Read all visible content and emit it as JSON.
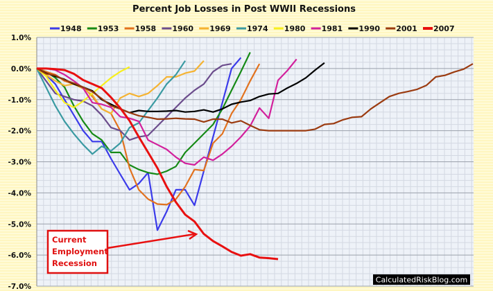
{
  "chart_data": {
    "type": "line",
    "title": "Percent Job Losses in Post WWII Recessions",
    "xlabel": "",
    "ylabel": "",
    "ylim": [
      -7.0,
      1.0
    ],
    "yticks": [
      "1.0%",
      "0.0%",
      "-1.0%",
      "-2.0%",
      "-3.0%",
      "-4.0%",
      "-5.0%",
      "-6.0%",
      "-7.0%"
    ],
    "ytick_values": [
      1,
      0,
      -1,
      -2,
      -3,
      -4,
      -5,
      -6,
      -7
    ],
    "xlim": [
      0,
      47
    ],
    "x_unit": "months after employment peak",
    "grid": true,
    "legend_position": "top",
    "series": [
      {
        "name": "1948",
        "color": "#3b3bea",
        "values": [
          0,
          -0.2,
          -0.5,
          -1.0,
          -1.5,
          -2.0,
          -2.35,
          -2.35,
          -2.9,
          -3.4,
          -3.9,
          -3.7,
          -3.35,
          -5.2,
          -4.6,
          -3.9,
          -3.9,
          -4.4,
          -3.3,
          -2.2,
          -1.1,
          0.0,
          0.35
        ]
      },
      {
        "name": "1953",
        "color": "#168a16",
        "values": [
          0,
          -0.1,
          -0.3,
          -0.6,
          -1.2,
          -1.7,
          -2.1,
          -2.3,
          -2.7,
          -2.7,
          -3.1,
          -3.25,
          -3.35,
          -3.4,
          -3.3,
          -3.15,
          -2.7,
          -2.4,
          -2.1,
          -1.8,
          -1.3,
          -0.7,
          -0.1,
          0.52
        ]
      },
      {
        "name": "1958",
        "color": "#e2721e",
        "values": [
          0,
          -0.1,
          -0.2,
          -0.4,
          -0.5,
          -0.6,
          -0.9,
          -1.3,
          -1.45,
          -2.0,
          -3.2,
          -3.9,
          -4.2,
          -4.36,
          -4.38,
          -4.2,
          -3.8,
          -3.25,
          -3.28,
          -2.4,
          -2.1,
          -1.45,
          -1.0,
          -0.4,
          0.15
        ]
      },
      {
        "name": "1960",
        "color": "#6b4c8c",
        "values": [
          0,
          -0.4,
          -0.8,
          -0.9,
          -1.0,
          -1.05,
          -1.2,
          -1.5,
          -1.9,
          -2.0,
          -2.3,
          -2.2,
          -2.15,
          -1.85,
          -1.55,
          -1.25,
          -0.95,
          -0.7,
          -0.5,
          -0.1,
          0.1,
          0.15
        ]
      },
      {
        "name": "1969",
        "color": "#f5b332",
        "values": [
          0,
          -0.2,
          -0.4,
          -0.55,
          -0.5,
          -0.65,
          -0.85,
          -1.3,
          -1.45,
          -0.95,
          -0.8,
          -0.9,
          -0.8,
          -0.55,
          -0.27,
          -0.27,
          -0.15,
          -0.08,
          0.25
        ]
      },
      {
        "name": "1974",
        "color": "#3a9aa2",
        "values": [
          0,
          -0.6,
          -1.2,
          -1.7,
          -2.1,
          -2.45,
          -2.75,
          -2.5,
          -2.65,
          -2.4,
          -1.9,
          -1.75,
          -1.35,
          -0.95,
          -0.5,
          -0.2,
          0.25
        ]
      },
      {
        "name": "1980",
        "color": "#f7ef1e",
        "values": [
          0,
          -0.25,
          -0.7,
          -1.1,
          -1.25,
          -1.05,
          -0.8,
          -0.55,
          -0.3,
          -0.1,
          0.05
        ]
      },
      {
        "name": "1981",
        "color": "#d2209c",
        "values": [
          0,
          0,
          -0.05,
          -0.2,
          -0.4,
          -0.63,
          -1.1,
          -1.15,
          -1.25,
          -1.55,
          -1.6,
          -1.7,
          -2.3,
          -2.45,
          -2.6,
          -2.85,
          -3.05,
          -3.1,
          -2.85,
          -2.95,
          -2.75,
          -2.5,
          -2.2,
          -1.85,
          -1.27,
          -1.6,
          -0.38,
          -0.07,
          0.3
        ]
      },
      {
        "name": "1990",
        "color": "#000000",
        "values": [
          0,
          -0.15,
          -0.25,
          -0.35,
          -0.5,
          -0.6,
          -0.72,
          -1.0,
          -1.15,
          -1.3,
          -1.42,
          -1.35,
          -1.38,
          -1.38,
          -1.37,
          -1.35,
          -1.4,
          -1.38,
          -1.33,
          -1.4,
          -1.3,
          -1.15,
          -1.08,
          -1.03,
          -0.9,
          -0.82,
          -0.8,
          -0.63,
          -0.48,
          -0.3,
          -0.05,
          0.18
        ]
      },
      {
        "name": "2001",
        "color": "#9b3b10",
        "values": [
          0,
          -0.17,
          -0.22,
          -0.37,
          -0.47,
          -0.6,
          -0.75,
          -0.97,
          -1.2,
          -1.3,
          -1.42,
          -1.52,
          -1.57,
          -1.63,
          -1.62,
          -1.6,
          -1.62,
          -1.63,
          -1.72,
          -1.63,
          -1.63,
          -1.75,
          -1.68,
          -1.83,
          -1.97,
          -2.0,
          -2.0,
          -2.0,
          -2.0,
          -2.0,
          -1.95,
          -1.8,
          -1.77,
          -1.65,
          -1.57,
          -1.55,
          -1.3,
          -1.1,
          -0.9,
          -0.8,
          -0.74,
          -0.67,
          -0.54,
          -0.27,
          -0.22,
          -0.11,
          -0.02,
          0.15
        ]
      },
      {
        "name": "2007",
        "color": "#e81010",
        "values": [
          0,
          0,
          -0.02,
          -0.05,
          -0.17,
          -0.37,
          -0.5,
          -0.63,
          -0.93,
          -1.27,
          -1.68,
          -2.2,
          -2.7,
          -3.2,
          -3.8,
          -4.3,
          -4.7,
          -4.92,
          -5.32,
          -5.55,
          -5.72,
          -5.9,
          -6.02,
          -5.97,
          -6.08,
          -6.1,
          -6.13
        ]
      }
    ],
    "annotations": [
      {
        "lines": [
          "Current",
          "Employment",
          "Recession"
        ],
        "points_to_series": "2007"
      }
    ]
  },
  "watermark": "CalculatedRiskBlog.com"
}
